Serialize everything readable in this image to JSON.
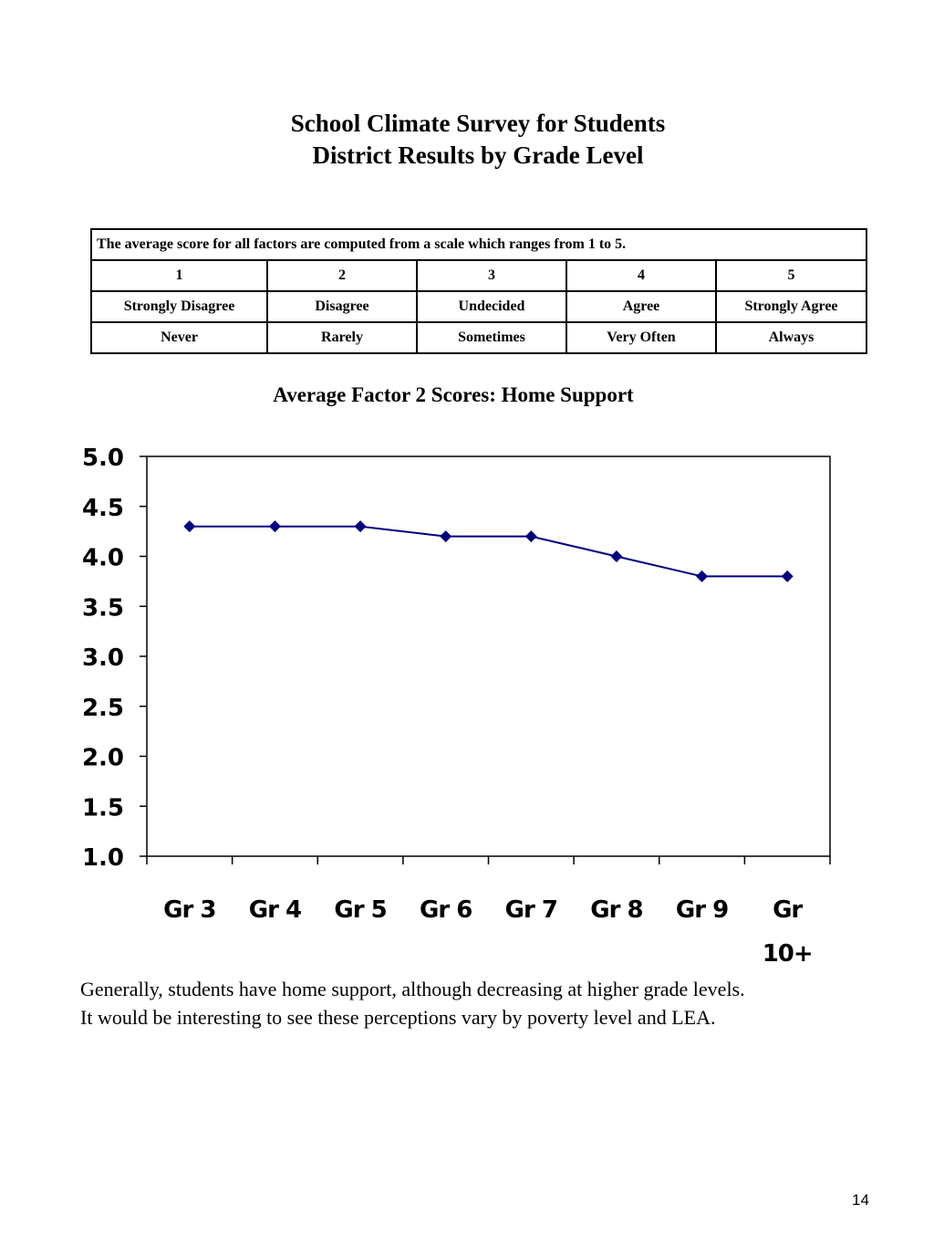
{
  "title": {
    "line1": "School Climate Survey for Students",
    "line2": "District Results by Grade Level"
  },
  "scale_table": {
    "note": "The average score for all factors are computed from a scale which ranges from 1 to 5.",
    "numbers": [
      "1",
      "2",
      "3",
      "4",
      "5"
    ],
    "agreement": [
      "Strongly Disagree",
      "Disagree",
      "Undecided",
      "Agree",
      "Strongly Agree"
    ],
    "frequency": [
      "Never",
      "Rarely",
      "Sometimes",
      "Very Often",
      "Always"
    ]
  },
  "chart_data": {
    "type": "line",
    "title": "Average Factor 2  Scores: Home Support",
    "xlabel": "",
    "ylabel": "",
    "categories": [
      "Gr 3",
      "Gr 4",
      "Gr 5",
      "Gr 6",
      "Gr 7",
      "Gr 8",
      "Gr 9",
      "Gr 10+"
    ],
    "category_lines": [
      [
        "Gr 3"
      ],
      [
        "Gr 4"
      ],
      [
        "Gr 5"
      ],
      [
        "Gr 6"
      ],
      [
        "Gr 7"
      ],
      [
        "Gr 8"
      ],
      [
        "Gr 9"
      ],
      [
        "Gr",
        "10+"
      ]
    ],
    "series": [
      {
        "values": [
          4.3,
          4.3,
          4.3,
          4.2,
          4.2,
          4.0,
          3.8,
          3.8
        ]
      }
    ],
    "ylim": [
      1.0,
      5.0
    ],
    "yticks": [
      "1.0",
      "1.5",
      "2.0",
      "2.5",
      "3.0",
      "3.5",
      "4.0",
      "4.5",
      "5.0"
    ],
    "grid": false,
    "legend": "none",
    "colors": {
      "series": "#000080",
      "axis": "#000000"
    },
    "marker": "diamond"
  },
  "caption": {
    "line1": "Generally, students have home support, although decreasing at higher grade levels.",
    "line2": "It would be interesting to see these perceptions vary by poverty level and LEA."
  },
  "page_number": "14"
}
